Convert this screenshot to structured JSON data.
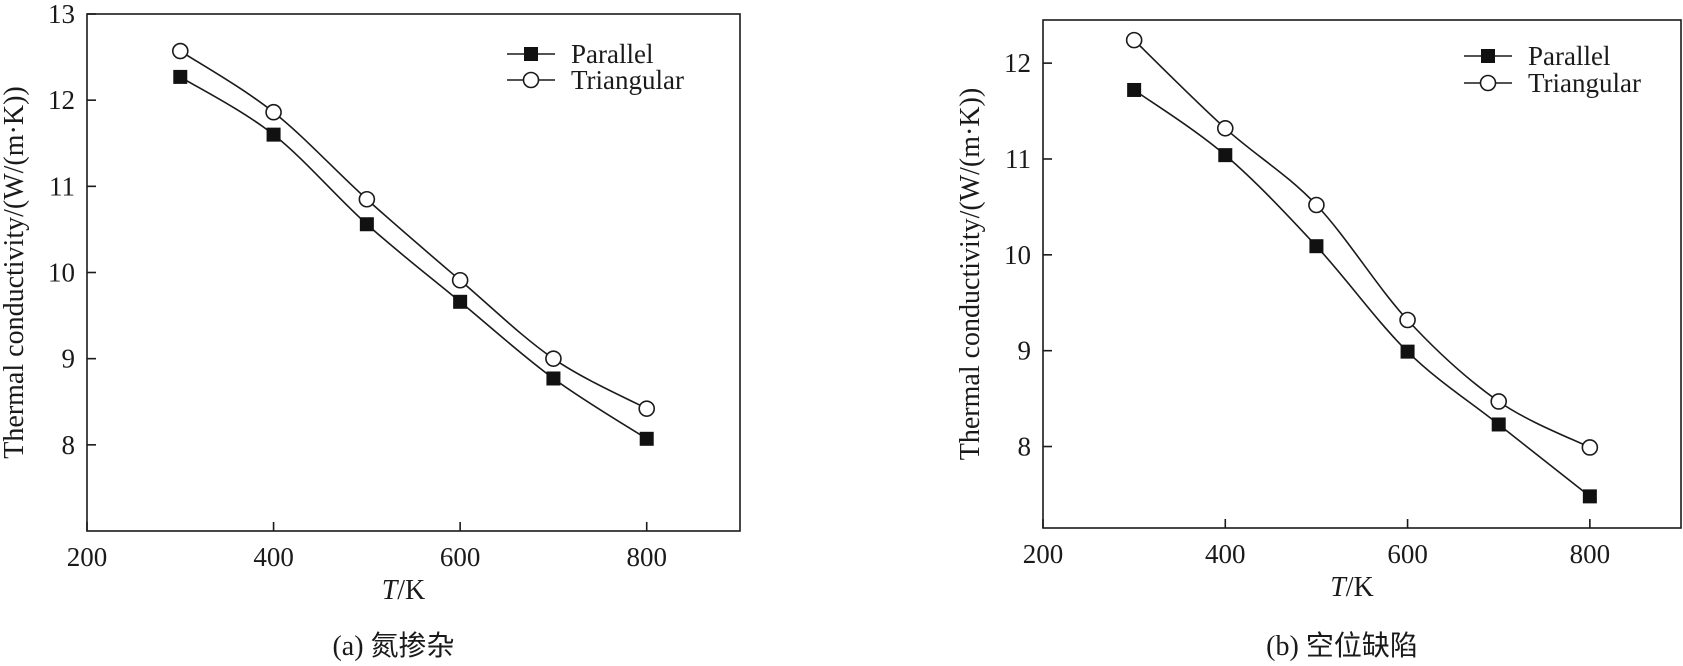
{
  "chart_data": [
    {
      "type": "line",
      "caption": "(a) 氮掺杂",
      "xlabel_italic": "T",
      "xlabel_rest": "/K",
      "ylabel": "Thermal conductivity/(W/(m·K))",
      "xlim": [
        200,
        900
      ],
      "ylim": [
        7,
        13
      ],
      "xticks": [
        200,
        400,
        600,
        800
      ],
      "yticks": [
        8,
        9,
        10,
        11,
        12,
        13
      ],
      "legend_position": "top-right",
      "grid": false,
      "x": [
        300,
        400,
        500,
        600,
        700,
        800
      ],
      "series": [
        {
          "name": "Parallel",
          "marker": "filled-square",
          "values": [
            12.27,
            11.6,
            10.56,
            9.66,
            8.77,
            8.07
          ]
        },
        {
          "name": "Triangular",
          "marker": "open-circle",
          "values": [
            12.57,
            11.86,
            10.85,
            9.91,
            9.0,
            8.42
          ]
        }
      ]
    },
    {
      "type": "line",
      "caption": "(b) 空位缺陷",
      "xlabel_italic": "T",
      "xlabel_rest": "/K",
      "ylabel": "Thermal conductivity/(W/(m·K))",
      "xlim": [
        200,
        900
      ],
      "ylim": [
        7.15,
        12.45
      ],
      "xticks": [
        200,
        400,
        600,
        800
      ],
      "yticks": [
        8,
        9,
        10,
        11,
        12
      ],
      "legend_position": "top-right",
      "grid": false,
      "x": [
        300,
        400,
        500,
        600,
        700,
        800
      ],
      "series": [
        {
          "name": "Parallel",
          "marker": "filled-square",
          "values": [
            11.72,
            11.04,
            10.09,
            8.99,
            8.23,
            7.48
          ]
        },
        {
          "name": "Triangular",
          "marker": "open-circle",
          "values": [
            12.24,
            11.32,
            10.52,
            9.32,
            8.47,
            7.99
          ]
        }
      ]
    }
  ]
}
